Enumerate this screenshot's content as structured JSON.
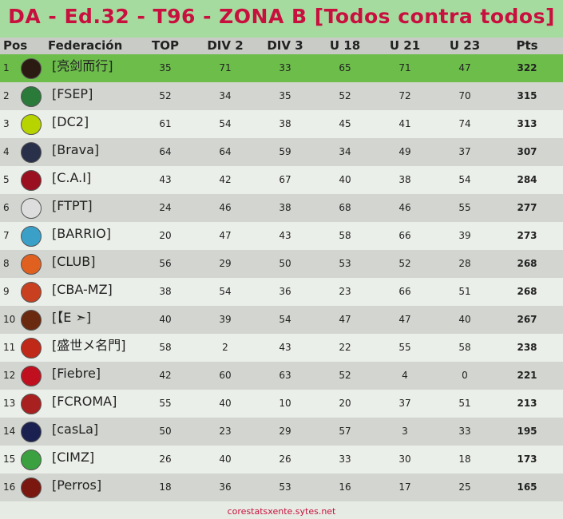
{
  "header": {
    "title": "DA - Ed.32 - T96 - ZONA B  [Todos contra todos]"
  },
  "table": {
    "columns": [
      "Pos",
      "Federación",
      "TOP",
      "DIV 2",
      "DIV 3",
      "U 18",
      "U 21",
      "U 23",
      "Pts"
    ],
    "rows": [
      [
        1,
        "[亮剑而行]",
        35,
        71,
        33,
        65,
        71,
        47,
        322
      ],
      [
        2,
        "[FSEP]",
        52,
        34,
        35,
        52,
        72,
        70,
        315
      ],
      [
        3,
        "[DC2]",
        61,
        54,
        38,
        45,
        41,
        74,
        313
      ],
      [
        4,
        "[Brava]",
        64,
        64,
        59,
        34,
        49,
        37,
        307
      ],
      [
        5,
        "[C.A.I]",
        43,
        42,
        67,
        40,
        38,
        54,
        284
      ],
      [
        6,
        "[FTPT]",
        24,
        46,
        38,
        68,
        46,
        55,
        277
      ],
      [
        7,
        "[BARRIO]",
        20,
        47,
        43,
        58,
        66,
        39,
        273
      ],
      [
        8,
        "[CLUB]",
        56,
        29,
        50,
        53,
        52,
        28,
        268
      ],
      [
        9,
        "[CBA-MZ]",
        38,
        54,
        36,
        23,
        66,
        51,
        268
      ],
      [
        10,
        "[【E ➣]",
        40,
        39,
        54,
        47,
        47,
        40,
        267
      ],
      [
        11,
        "[盛世メ名門]",
        58,
        2,
        43,
        22,
        55,
        58,
        238
      ],
      [
        12,
        "[Fiebre]",
        42,
        60,
        63,
        52,
        4,
        0,
        221
      ],
      [
        13,
        "[FCROMA]",
        55,
        40,
        10,
        20,
        37,
        51,
        213
      ],
      [
        14,
        "[casLa]",
        50,
        23,
        29,
        57,
        3,
        33,
        195
      ],
      [
        15,
        "[CIMZ]",
        26,
        40,
        26,
        33,
        30,
        18,
        173
      ],
      [
        16,
        "[Perros]",
        18,
        36,
        53,
        16,
        17,
        25,
        165
      ]
    ]
  },
  "footer": {
    "text": "corestatsxente.sytes.net"
  }
}
